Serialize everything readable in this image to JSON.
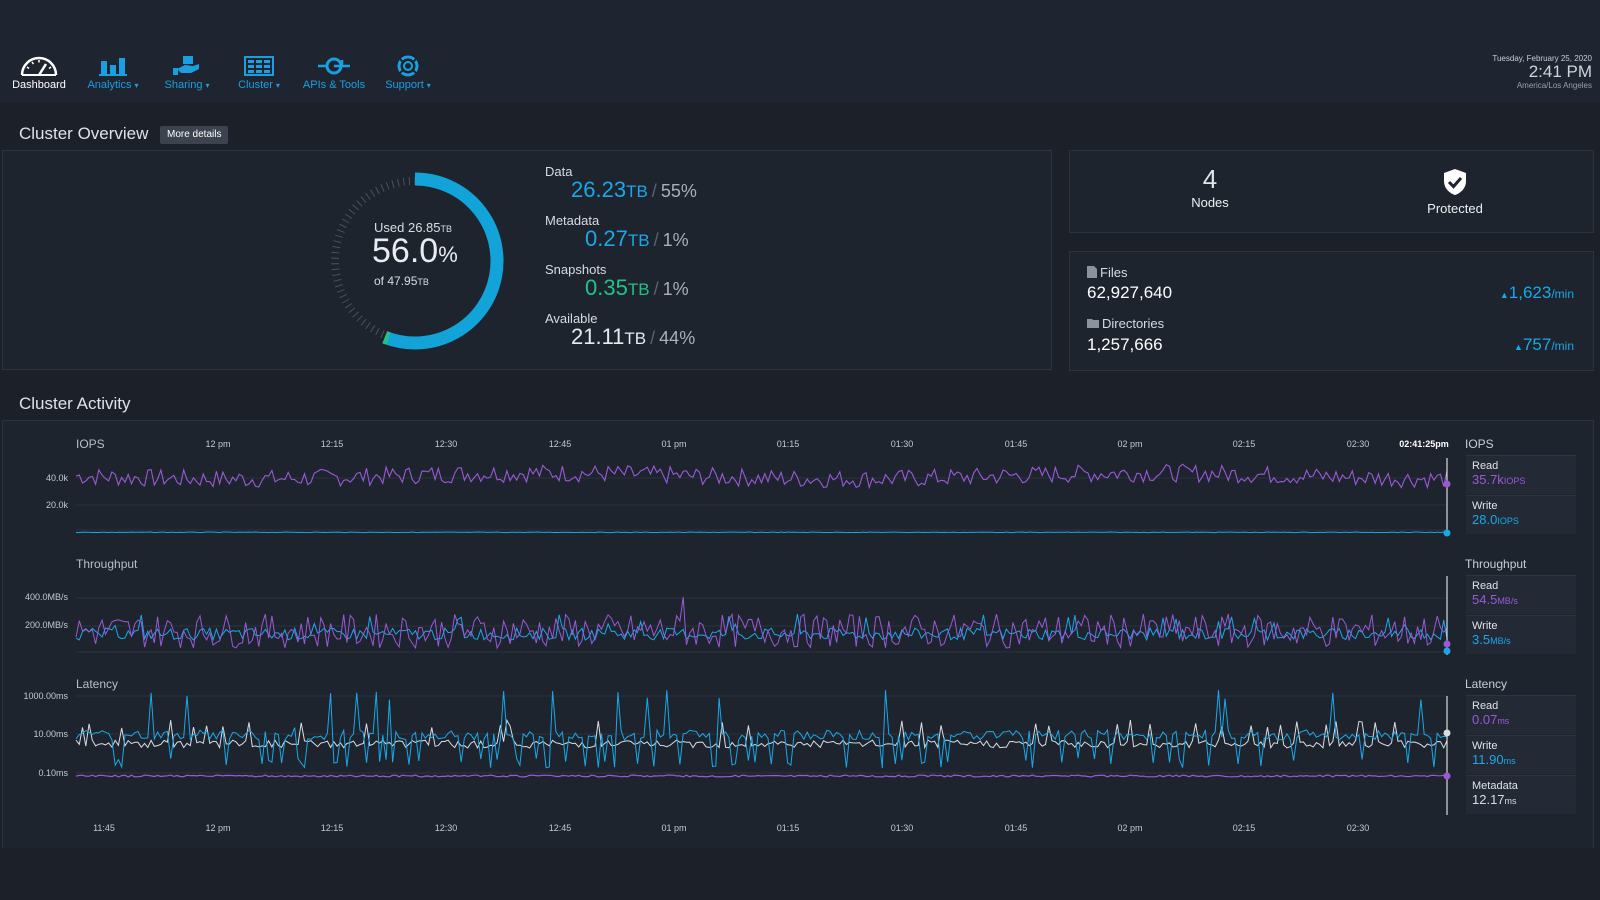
{
  "nav": {
    "items": [
      {
        "label": "Dashboard",
        "icon": "speedometer-icon",
        "active": true,
        "caret": ""
      },
      {
        "label": "Analytics",
        "icon": "bar-chart-icon",
        "active": false,
        "caret": "▾"
      },
      {
        "label": "Sharing",
        "icon": "share-hand-icon",
        "active": false,
        "caret": "▾"
      },
      {
        "label": "Cluster",
        "icon": "cluster-grid-icon",
        "active": false,
        "caret": "▾"
      },
      {
        "label": "APIs & Tools",
        "icon": "api-connector-icon",
        "active": false,
        "caret": ""
      },
      {
        "label": "Support",
        "icon": "lifebuoy-icon",
        "active": false,
        "caret": "▾"
      }
    ]
  },
  "clock": {
    "date": "Tuesday, February 25, 2020",
    "time": "2:41 PM",
    "timezone": "America/Los Angeles"
  },
  "overview": {
    "title": "Cluster Overview",
    "more_details": "More details",
    "gauge": {
      "used_label": "Used 26.85",
      "used_unit": "TB",
      "percent": "56.0",
      "percent_sign": "%",
      "of_label": "of 47.95",
      "of_unit": "TB",
      "fraction": 0.56
    },
    "usage": [
      {
        "label": "Data",
        "value": "26.23",
        "unit": "TB",
        "pct": "55%",
        "color": "#1aa8e8"
      },
      {
        "label": "Metadata",
        "value": "0.27",
        "unit": "TB",
        "pct": "1%",
        "color": "#1aa8e8"
      },
      {
        "label": "Snapshots",
        "value": "0.35",
        "unit": "TB",
        "pct": "1%",
        "color": "#21c28a"
      },
      {
        "label": "Available",
        "value": "21.11",
        "unit": "TB",
        "pct": "44%",
        "color": "#e6e9ee"
      }
    ],
    "nodes": {
      "count": "4",
      "label": "Nodes"
    },
    "protection": {
      "label": "Protected",
      "icon": "shield-check-icon"
    },
    "files": {
      "label": "Files",
      "value": "62,927,640",
      "rate": "1,623",
      "rate_unit": "/min",
      "icon": "file-icon"
    },
    "directories": {
      "label": "Directories",
      "value": "1,257,666",
      "rate": "757",
      "rate_unit": "/min",
      "icon": "folder-icon"
    }
  },
  "activity": {
    "title": "Cluster Activity",
    "now_label": "02:41:25pm",
    "top_x_ticks": [
      "12 pm",
      "12:15",
      "12:30",
      "12:45",
      "01 pm",
      "01:15",
      "01:30",
      "01:45",
      "02 pm",
      "02:15",
      "02:30"
    ],
    "bottom_x_ticks": [
      "11:45",
      "12 pm",
      "12:15",
      "12:30",
      "12:45",
      "01 pm",
      "01:15",
      "01:30",
      "01:45",
      "02 pm",
      "02:15",
      "02:30"
    ],
    "iops": {
      "title": "IOPS",
      "y_ticks": [
        "40.0k",
        "20.0k"
      ],
      "legend_title": "IOPS",
      "read": {
        "label": "Read",
        "value": "35.7k",
        "unit": "IOPS",
        "color": "#9b59d8"
      },
      "write": {
        "label": "Write",
        "value": "28.0",
        "unit": "IOPS",
        "color": "#1aa8e8"
      }
    },
    "throughput": {
      "title": "Throughput",
      "y_ticks": [
        "400.0MB/s",
        "200.0MB/s"
      ],
      "legend_title": "Throughput",
      "read": {
        "label": "Read",
        "value": "54.5",
        "unit": "MB/s",
        "color": "#9b59d8"
      },
      "write": {
        "label": "Write",
        "value": "3.5",
        "unit": "MB/s",
        "color": "#1aa8e8"
      }
    },
    "latency": {
      "title": "Latency",
      "y_ticks": [
        "1000.00ms",
        "10.00ms",
        "0.10ms"
      ],
      "legend_title": "Latency",
      "read": {
        "label": "Read",
        "value": "0.07",
        "unit": "ms",
        "color": "#9b59d8"
      },
      "write": {
        "label": "Write",
        "value": "11.90",
        "unit": "ms",
        "color": "#1aa8e8"
      },
      "metadata": {
        "label": "Metadata",
        "value": "12.17",
        "unit": "ms",
        "color": "#d9dde2"
      }
    }
  }
}
